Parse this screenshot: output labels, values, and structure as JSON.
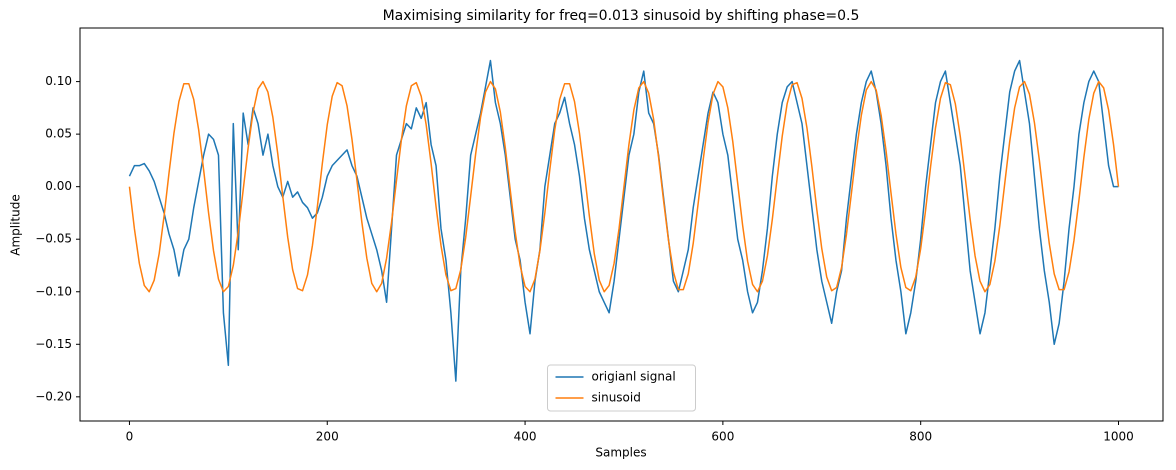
{
  "chart_data": {
    "type": "line",
    "title": "Maximising similarity for freq=0.013 sinusoid by shifting phase=0.5",
    "x_label": "Samples",
    "y_label": "Amplitude",
    "legend": "lower center",
    "xlim": [
      -50,
      1045
    ],
    "ylim": [
      -0.223,
      0.151
    ],
    "xticks": [
      0,
      200,
      400,
      600,
      800,
      1000
    ],
    "yticks": [
      {
        "value": -0.2,
        "label": "−0.20"
      },
      {
        "value": -0.15,
        "label": "−0.15"
      },
      {
        "value": -0.1,
        "label": "−0.10"
      },
      {
        "value": -0.05,
        "label": "−0.05"
      },
      {
        "value": 0,
        "label": "0.00"
      },
      {
        "value": 0.05,
        "label": "0.05"
      },
      {
        "value": 0.1,
        "label": "0.10"
      }
    ],
    "x": [
      0,
      5,
      10,
      15,
      20,
      25,
      30,
      35,
      40,
      45,
      50,
      55,
      60,
      65,
      70,
      75,
      80,
      85,
      90,
      95,
      100,
      105,
      110,
      115,
      120,
      125,
      130,
      135,
      140,
      145,
      150,
      155,
      160,
      165,
      170,
      175,
      180,
      185,
      190,
      195,
      200,
      205,
      210,
      215,
      220,
      225,
      230,
      235,
      240,
      245,
      250,
      255,
      260,
      265,
      270,
      275,
      280,
      285,
      290,
      295,
      300,
      305,
      310,
      315,
      320,
      325,
      330,
      335,
      340,
      345,
      350,
      355,
      360,
      365,
      370,
      375,
      380,
      385,
      390,
      395,
      400,
      405,
      410,
      415,
      420,
      425,
      430,
      435,
      440,
      445,
      450,
      455,
      460,
      465,
      470,
      475,
      480,
      485,
      490,
      495,
      500,
      505,
      510,
      515,
      520,
      525,
      530,
      535,
      540,
      545,
      550,
      555,
      560,
      565,
      570,
      575,
      580,
      585,
      590,
      595,
      600,
      605,
      610,
      615,
      620,
      625,
      630,
      635,
      640,
      645,
      650,
      655,
      660,
      665,
      670,
      675,
      680,
      685,
      690,
      695,
      700,
      705,
      710,
      715,
      720,
      725,
      730,
      735,
      740,
      745,
      750,
      755,
      760,
      765,
      770,
      775,
      780,
      785,
      790,
      795,
      800,
      805,
      810,
      815,
      820,
      825,
      830,
      835,
      840,
      845,
      850,
      855,
      860,
      865,
      870,
      875,
      880,
      885,
      890,
      895,
      900,
      905,
      910,
      915,
      920,
      925,
      930,
      935,
      940,
      945,
      950,
      955,
      960,
      965,
      970,
      975,
      980,
      985,
      990,
      995,
      1000
    ],
    "series": [
      {
        "name": "origianl signal",
        "color": "#1f77b4",
        "values": [
          0.01,
          0.02,
          0.02,
          0.022,
          0.015,
          0.005,
          -0.01,
          -0.025,
          -0.045,
          -0.06,
          -0.085,
          -0.06,
          -0.05,
          -0.02,
          0.005,
          0.03,
          0.05,
          0.045,
          0.03,
          -0.12,
          -0.17,
          0.06,
          -0.06,
          0.07,
          0.04,
          0.075,
          0.06,
          0.03,
          0.05,
          0.02,
          0.0,
          -0.01,
          0.005,
          -0.01,
          -0.005,
          -0.015,
          -0.02,
          -0.03,
          -0.025,
          -0.01,
          0.01,
          0.02,
          0.025,
          0.03,
          0.035,
          0.02,
          0.01,
          -0.01,
          -0.03,
          -0.045,
          -0.06,
          -0.08,
          -0.11,
          -0.04,
          0.03,
          0.045,
          0.06,
          0.055,
          0.075,
          0.065,
          0.08,
          0.04,
          0.02,
          -0.04,
          -0.07,
          -0.12,
          -0.185,
          -0.08,
          -0.03,
          0.03,
          0.05,
          0.07,
          0.095,
          0.12,
          0.08,
          0.06,
          0.03,
          -0.01,
          -0.05,
          -0.07,
          -0.11,
          -0.14,
          -0.09,
          -0.06,
          0.0,
          0.03,
          0.06,
          0.07,
          0.085,
          0.06,
          0.04,
          0.01,
          -0.03,
          -0.06,
          -0.08,
          -0.1,
          -0.11,
          -0.12,
          -0.09,
          -0.05,
          -0.01,
          0.03,
          0.05,
          0.09,
          0.11,
          0.07,
          0.06,
          0.03,
          -0.01,
          -0.05,
          -0.09,
          -0.1,
          -0.08,
          -0.06,
          -0.02,
          0.01,
          0.04,
          0.07,
          0.09,
          0.08,
          0.05,
          0.03,
          -0.01,
          -0.05,
          -0.07,
          -0.1,
          -0.12,
          -0.11,
          -0.08,
          -0.04,
          0.01,
          0.05,
          0.08,
          0.095,
          0.1,
          0.08,
          0.06,
          0.02,
          -0.02,
          -0.06,
          -0.09,
          -0.11,
          -0.13,
          -0.1,
          -0.08,
          -0.03,
          0.01,
          0.05,
          0.08,
          0.1,
          0.11,
          0.09,
          0.06,
          0.02,
          -0.03,
          -0.07,
          -0.1,
          -0.14,
          -0.12,
          -0.09,
          -0.05,
          0.0,
          0.04,
          0.08,
          0.1,
          0.11,
          0.08,
          0.05,
          0.02,
          -0.03,
          -0.08,
          -0.11,
          -0.14,
          -0.12,
          -0.08,
          -0.04,
          0.01,
          0.05,
          0.09,
          0.11,
          0.12,
          0.09,
          0.06,
          0.01,
          -0.04,
          -0.08,
          -0.11,
          -0.15,
          -0.13,
          -0.09,
          -0.04,
          0.0,
          0.05,
          0.08,
          0.1,
          0.11,
          0.1,
          0.06,
          0.02,
          0.0,
          0.0
        ]
      },
      {
        "name": "sinusoid",
        "color": "#ff7f0e",
        "values": [
          0,
          -0.04,
          -0.073,
          -0.094,
          -0.1,
          -0.089,
          -0.064,
          -0.028,
          0.013,
          0.051,
          0.081,
          0.098,
          0.098,
          0.083,
          0.054,
          0.016,
          -0.025,
          -0.061,
          -0.088,
          -0.1,
          -0.095,
          -0.075,
          -0.043,
          -0.003,
          0.037,
          0.071,
          0.093,
          0.1,
          0.09,
          0.066,
          0.031,
          -0.009,
          -0.048,
          -0.079,
          -0.097,
          -0.099,
          -0.084,
          -0.056,
          -0.019,
          0.022,
          0.059,
          0.086,
          0.099,
          0.096,
          0.077,
          0.045,
          0.006,
          -0.034,
          -0.068,
          -0.092,
          -0.1,
          -0.092,
          -0.068,
          -0.034,
          0.006,
          0.045,
          0.077,
          0.096,
          0.099,
          0.086,
          0.059,
          0.022,
          -0.019,
          -0.056,
          -0.084,
          -0.099,
          -0.097,
          -0.079,
          -0.048,
          -0.009,
          0.031,
          0.066,
          0.09,
          0.1,
          0.093,
          0.071,
          0.037,
          -0.003,
          -0.043,
          -0.075,
          -0.095,
          -0.1,
          -0.088,
          -0.061,
          -0.025,
          0.016,
          0.054,
          0.083,
          0.098,
          0.098,
          0.081,
          0.051,
          0.013,
          -0.028,
          -0.064,
          -0.089,
          -0.1,
          -0.094,
          -0.073,
          -0.04,
          0,
          0.04,
          0.073,
          0.094,
          0.1,
          0.089,
          0.064,
          0.028,
          -0.013,
          -0.051,
          -0.081,
          -0.098,
          -0.098,
          -0.083,
          -0.054,
          -0.016,
          0.025,
          0.061,
          0.088,
          0.1,
          0.095,
          0.075,
          0.043,
          0.003,
          -0.037,
          -0.071,
          -0.093,
          -0.1,
          -0.09,
          -0.066,
          -0.031,
          0.009,
          0.048,
          0.079,
          0.097,
          0.099,
          0.084,
          0.056,
          0.019,
          -0.022,
          -0.059,
          -0.086,
          -0.099,
          -0.096,
          -0.077,
          -0.045,
          -0.006,
          0.034,
          0.068,
          0.092,
          0.1,
          0.092,
          0.068,
          0.034,
          -0.006,
          -0.045,
          -0.077,
          -0.096,
          -0.099,
          -0.086,
          -0.059,
          -0.022,
          0.019,
          0.056,
          0.084,
          0.099,
          0.097,
          0.079,
          0.048,
          0.009,
          -0.031,
          -0.066,
          -0.09,
          -0.1,
          -0.093,
          -0.071,
          -0.037,
          0.003,
          0.043,
          0.075,
          0.095,
          0.1,
          0.088,
          0.061,
          0.025,
          -0.016,
          -0.054,
          -0.083,
          -0.098,
          -0.098,
          -0.081,
          -0.051,
          -0.013,
          0.028,
          0.064,
          0.089,
          0.1,
          0.094,
          0.073,
          0.04,
          0
        ]
      }
    ]
  }
}
